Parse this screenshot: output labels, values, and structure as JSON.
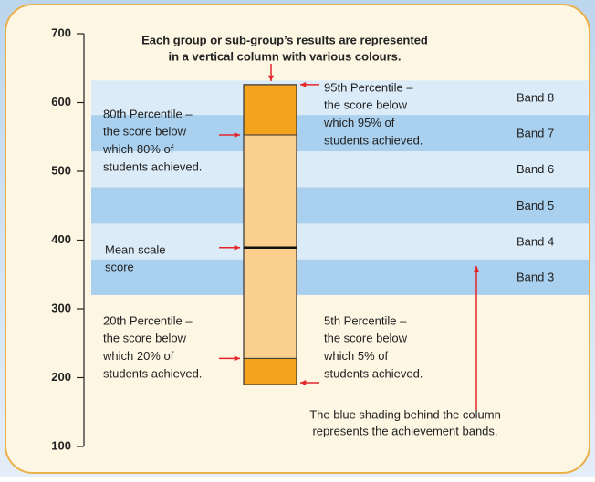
{
  "caption": [
    "Each group or sub-group’s results are represented",
    "in a vertical column with various colours."
  ],
  "axis": {
    "ylim": [
      100,
      700
    ],
    "yticks": [
      100,
      200,
      300,
      400,
      500,
      600,
      700
    ]
  },
  "bands": [
    {
      "label": "Band 3",
      "range": [
        320,
        372
      ]
    },
    {
      "label": "Band 4",
      "range": [
        372,
        424
      ]
    },
    {
      "label": "Band 5",
      "range": [
        424,
        477
      ]
    },
    {
      "label": "Band 6",
      "range": [
        477,
        529
      ]
    },
    {
      "label": "Band 7",
      "range": [
        529,
        582
      ]
    },
    {
      "label": "Band 8",
      "range": [
        582,
        632
      ]
    }
  ],
  "annotations": [
    {
      "lines": [
        "95th Percentile –",
        "the score below",
        "which 95% of",
        "students achieved."
      ],
      "value": 626
    },
    {
      "lines": [
        "80th Percentile –",
        "the score below",
        "which 80% of",
        "students achieved."
      ],
      "value": 553
    },
    {
      "lines": [
        "Mean scale",
        "score"
      ],
      "value": 389
    },
    {
      "lines": [
        "20th Percentile –",
        "the score below",
        "which 20% of",
        "students achieved."
      ],
      "value": 228
    },
    {
      "lines": [
        "5th Percentile –",
        "the score below",
        "which 5% of",
        "students achieved."
      ],
      "value": 190
    }
  ],
  "note": [
    "The blue shading behind the column",
    "represents the achievement bands."
  ]
}
